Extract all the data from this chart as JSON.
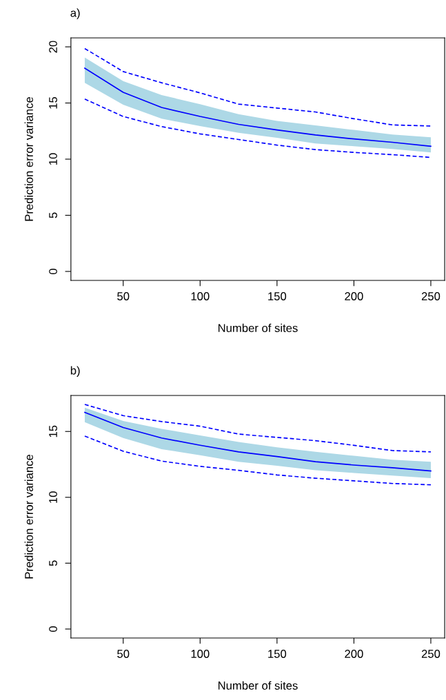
{
  "chart_data": [
    {
      "type": "line",
      "title": "a)",
      "xlabel": "Number of sites",
      "ylabel": "Prediction error variance",
      "x": [
        25,
        50,
        75,
        100,
        125,
        150,
        175,
        200,
        225,
        250
      ],
      "xlim": [
        16,
        259
      ],
      "xticks": [
        50,
        100,
        150,
        200,
        250
      ],
      "ylim": [
        -0.8,
        20.8
      ],
      "yticks": [
        0,
        5,
        10,
        15,
        20
      ],
      "grid": false,
      "legend": false,
      "series": [
        {
          "color": "#0000ff",
          "line_style": "solid",
          "values": [
            18.1,
            15.95,
            14.6,
            13.8,
            13.1,
            12.6,
            12.15,
            11.8,
            11.5,
            11.15
          ],
          "lower": [
            16.8,
            14.85,
            13.6,
            12.95,
            12.35,
            11.9,
            11.4,
            11.15,
            10.9,
            10.6
          ],
          "upper": [
            19.05,
            16.95,
            15.7,
            14.9,
            14.0,
            13.4,
            13.0,
            12.6,
            12.2,
            11.95
          ]
        },
        {
          "color": "#0000ff",
          "line_style": "dashed",
          "values": [
            19.85,
            17.8,
            16.8,
            15.9,
            14.9,
            14.55,
            14.2,
            13.6,
            13.05,
            12.95
          ]
        },
        {
          "color": "#0000ff",
          "line_style": "dashed",
          "values": [
            15.35,
            13.8,
            12.9,
            12.25,
            11.75,
            11.25,
            10.85,
            10.6,
            10.4,
            10.15
          ]
        }
      ]
    },
    {
      "type": "line",
      "title": "b)",
      "xlabel": "Number of sites",
      "ylabel": "Prediction error variance",
      "x": [
        25,
        50,
        75,
        100,
        125,
        150,
        175,
        200,
        225,
        250
      ],
      "xlim": [
        16,
        259
      ],
      "xticks": [
        50,
        100,
        150,
        200,
        250
      ],
      "ylim": [
        -0.68,
        17.73
      ],
      "yticks": [
        0,
        5,
        10,
        15
      ],
      "grid": false,
      "legend": false,
      "series": [
        {
          "color": "#0000ff",
          "line_style": "solid",
          "values": [
            16.45,
            15.3,
            14.5,
            13.95,
            13.45,
            13.1,
            12.7,
            12.45,
            12.25,
            12.0
          ],
          "lower": [
            15.7,
            14.5,
            13.65,
            13.2,
            12.7,
            12.4,
            12.05,
            11.85,
            11.65,
            11.45
          ],
          "upper": [
            16.8,
            15.8,
            15.2,
            14.7,
            14.2,
            13.8,
            13.45,
            13.15,
            12.85,
            12.7
          ]
        },
        {
          "color": "#0000ff",
          "line_style": "dashed",
          "values": [
            17.05,
            16.2,
            15.75,
            15.4,
            14.8,
            14.55,
            14.3,
            13.95,
            13.55,
            13.45
          ]
        },
        {
          "color": "#0000ff",
          "line_style": "dashed",
          "values": [
            14.65,
            13.5,
            12.75,
            12.35,
            12.05,
            11.7,
            11.45,
            11.25,
            11.05,
            10.95
          ]
        }
      ]
    }
  ]
}
